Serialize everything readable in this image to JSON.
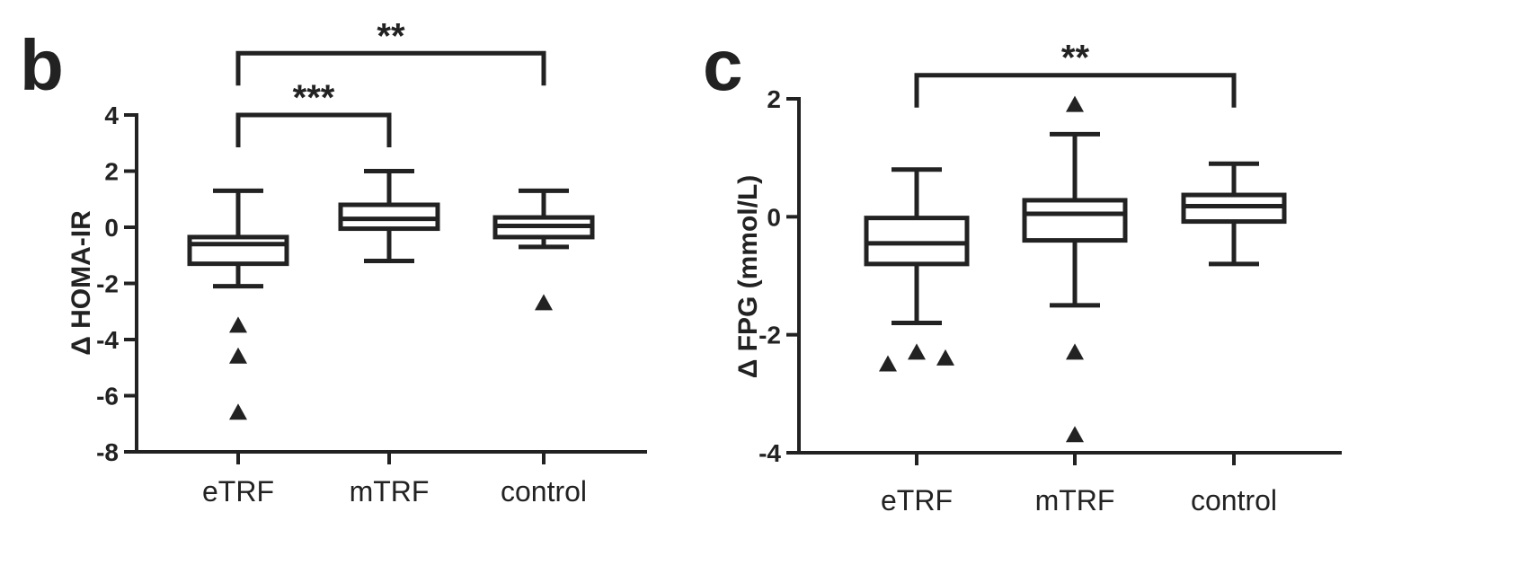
{
  "chart_data": [
    {
      "type": "box",
      "panel_label": "b",
      "ylabel": "Δ HOMA-IR",
      "ylim": [
        -8,
        4
      ],
      "yticks": [
        "4",
        "2",
        "0",
        "-2",
        "-4",
        "-6",
        "-8"
      ],
      "yticks_values": [
        4,
        2,
        0,
        -2,
        -4,
        -6,
        -8
      ],
      "categories": [
        "eTRF",
        "mTRF",
        "control"
      ],
      "boxes": [
        {
          "category": "eTRF",
          "whisker_low": -2.1,
          "q1": -1.3,
          "median": -0.6,
          "q3": -0.35,
          "whisker_high": 1.3,
          "outliers": [
            -3.5,
            -4.6,
            -6.6
          ]
        },
        {
          "category": "mTRF",
          "whisker_low": -1.2,
          "q1": -0.05,
          "median": 0.3,
          "q3": 0.8,
          "whisker_high": 2.0,
          "outliers": []
        },
        {
          "category": "control",
          "whisker_low": -0.7,
          "q1": -0.35,
          "median": 0.05,
          "q3": 0.35,
          "whisker_high": 1.3,
          "outliers": [
            -2.7
          ]
        }
      ],
      "significance": [
        {
          "from": 0,
          "to": 2,
          "label": "**",
          "level": 6.2
        },
        {
          "from": 0,
          "to": 1,
          "label": "***",
          "level": 4.0
        }
      ]
    },
    {
      "type": "box",
      "panel_label": "c",
      "ylabel": "Δ FPG (mmol/L)",
      "ylim": [
        -4,
        2
      ],
      "yticks": [
        "2",
        "0",
        "-2",
        "-4"
      ],
      "yticks_values": [
        2,
        0,
        -2,
        -4
      ],
      "categories": [
        "eTRF",
        "mTRF",
        "control"
      ],
      "boxes": [
        {
          "category": "eTRF",
          "whisker_low": -1.8,
          "q1": -0.8,
          "median": -0.45,
          "q3": -0.02,
          "whisker_high": 0.8,
          "outliers": [
            -2.5,
            -2.3,
            -2.4
          ]
        },
        {
          "category": "mTRF",
          "whisker_low": -1.5,
          "q1": -0.4,
          "median": 0.05,
          "q3": 0.28,
          "whisker_high": 1.4,
          "outliers": [
            1.9,
            -2.3,
            -3.7
          ]
        },
        {
          "category": "control",
          "whisker_low": -0.8,
          "q1": -0.08,
          "median": 0.18,
          "q3": 0.37,
          "whisker_high": 0.9,
          "outliers": []
        }
      ],
      "significance": [
        {
          "from": 0,
          "to": 2,
          "label": "**",
          "level": 2.4
        }
      ]
    }
  ]
}
